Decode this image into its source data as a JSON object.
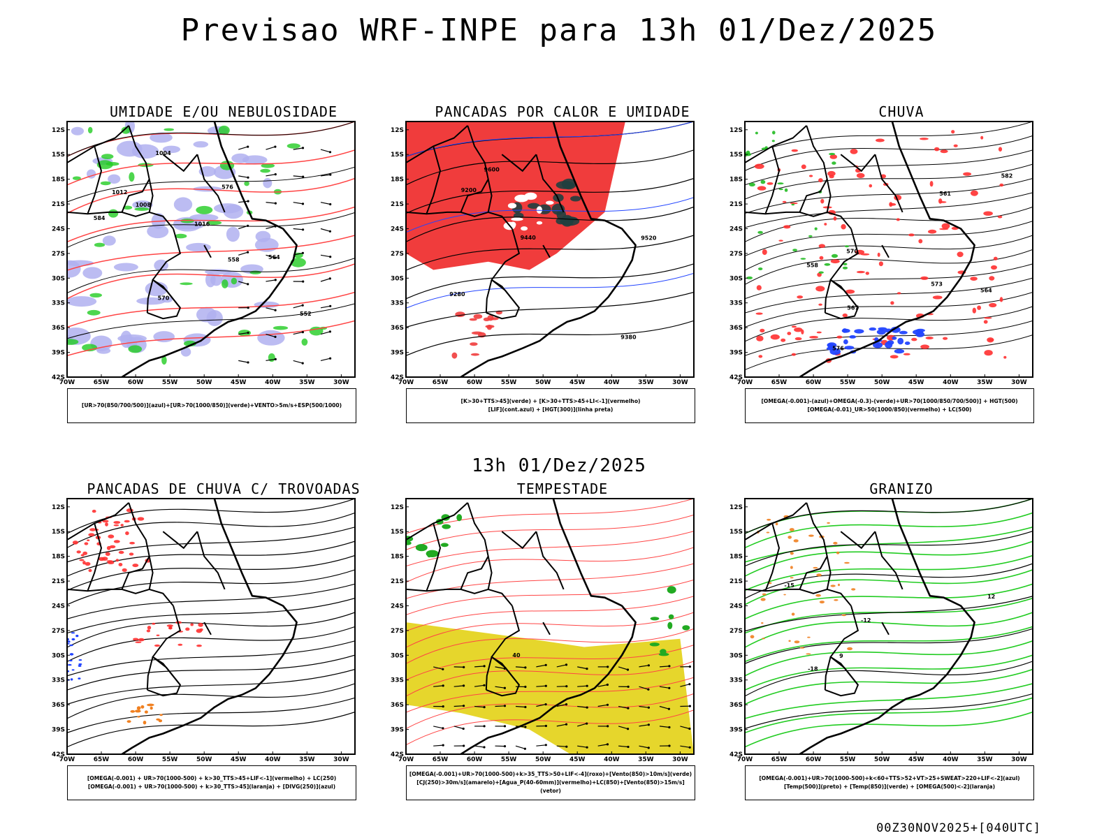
{
  "header": {
    "title": "Previsao WRF-INPE  para 13h 01/Dez/2025",
    "mid_title": "13h 01/Dez/2025",
    "footer": "00Z30NOV2025+[040UTC]"
  },
  "axes": {
    "lat_labels": [
      "12S",
      "15S",
      "18S",
      "21S",
      "24S",
      "27S",
      "30S",
      "33S",
      "36S",
      "39S",
      "42S"
    ],
    "lon_labels": [
      "70W",
      "65W",
      "60W",
      "55W",
      "50W",
      "45W",
      "40W",
      "35W",
      "30W"
    ]
  },
  "chart_data": [
    {
      "type": "heatmap",
      "title": "UMIDADE E/OU NEBULOSIDADE",
      "legend": [
        "[UR>70(850/700/500)](azul)+[UR>70(1000/850)](verde)+VENTO>5m/s+ESP(500/1000)"
      ],
      "contour_labels": [
        "1008",
        "1012",
        "1016",
        "1004",
        "570",
        "576",
        "584",
        "558",
        "552",
        "564"
      ],
      "ylim": [
        -42,
        -11
      ],
      "xlim": [
        -70,
        -28
      ]
    },
    {
      "type": "heatmap",
      "title": "PANCADAS POR CALOR E UMIDADE",
      "legend": [
        "[K>30+TTS>45](verde) + [K>30+TTS>45+LI<-1](vermelho)",
        "[LIF](cont.azul) + [HGT(300)](linha preta)"
      ],
      "contour_labels": [
        "9600",
        "9520",
        "9440",
        "9380",
        "9280",
        "9200"
      ],
      "ylim": [
        -42,
        -11
      ],
      "xlim": [
        -70,
        -28
      ]
    },
    {
      "type": "heatmap",
      "title": "CHUVA",
      "legend": [
        "[OMEGA(-0.001)-(azul)+OMEGA(-0.3)-(verde)+UR>70(1000/850/700/500)] + HGT(500)",
        "[OMEGA(-0.01)_UR>50(1000/850)(vermelho) + LC(500)"
      ],
      "contour_labels": [
        "576",
        "573",
        "570",
        "567",
        "564",
        "561",
        "558",
        "582"
      ],
      "ylim": [
        -42,
        -11
      ],
      "xlim": [
        -70,
        -28
      ]
    },
    {
      "type": "heatmap",
      "title": "PANCADAS DE CHUVA C/ TROVOADAS",
      "legend": [
        "[OMEGA(-0.001) + UR>70(1000-500) + k>30_TTS>45+LIF<-1](vermelho) + LC(250)",
        "[OMEGA(-0.001) + UR>70(1000-500) + k>30_TTS>45](laranja) + [DIVG(250)](azul)"
      ],
      "contour_labels": [],
      "ylim": [
        -42,
        -11
      ],
      "xlim": [
        -70,
        -28
      ]
    },
    {
      "type": "heatmap",
      "title": "TEMPESTADE",
      "legend": [
        "[OMEGA(-0.001)+UR>70(1000-500)+k>35_TTS>50+LIF<-4](roxo)+[Vento(850)>10m/s](verde)",
        "[CJ(250)>30m/s](amarelo)+[Agua_P(40-60mm)](vermelho)+LC(850)+[Vento(850)>15m/s](vetor)"
      ],
      "contour_labels": [
        "40"
      ],
      "ylim": [
        -42,
        -11
      ],
      "xlim": [
        -70,
        -28
      ]
    },
    {
      "type": "heatmap",
      "title": "GRANIZO",
      "legend": [
        "[OMEGA(-0.001)+UR>70(1000-500)+k<60+TTS>52+VT>25+SWEAT>220+LIF<-2](azul)",
        "[Temp(500)](preto) + [Temp(850)](verde) + [OMEGA(500)<-2](laranja)"
      ],
      "contour_labels": [
        "-12",
        "-15",
        "-18",
        "12",
        "9"
      ],
      "ylim": [
        -42,
        -11
      ],
      "xlim": [
        -70,
        -28
      ]
    }
  ]
}
